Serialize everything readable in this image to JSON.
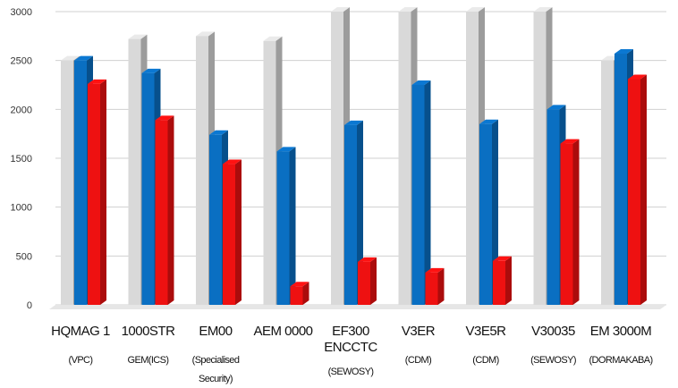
{
  "chart_data": {
    "type": "bar",
    "title": "",
    "xlabel": "",
    "ylabel": "",
    "ylim": [
      0,
      3000
    ],
    "yticks": [
      0,
      500,
      1000,
      1500,
      2000,
      2500,
      3000
    ],
    "grid": true,
    "legend": "none",
    "categories": [
      [
        "HQMAG 1",
        "(VPC)"
      ],
      [
        "1000STR",
        "GEM(ICS)"
      ],
      [
        "EM00",
        "(Specialised",
        "Security)"
      ],
      [
        "AEM 0000"
      ],
      [
        "EF300",
        "ENCCTC",
        "(SEWOSY)"
      ],
      [
        "V3ER",
        "(CDM)"
      ],
      [
        "V3E5R",
        "(CDM)"
      ],
      [
        "V30035",
        "(SEWOSY)"
      ],
      [
        "EM 3000M",
        "(DORMAKABA)"
      ]
    ],
    "series": [
      {
        "color": "#d9d9d9",
        "values": [
          2500,
          2720,
          2750,
          2700,
          3000,
          3000,
          3000,
          3000,
          2500
        ]
      },
      {
        "color": "#0a6fc2",
        "values": [
          2500,
          2370,
          1740,
          1570,
          1840,
          2250,
          1850,
          2000,
          2570
        ]
      },
      {
        "color": "#ee1111",
        "values": [
          2260,
          1890,
          1440,
          190,
          440,
          330,
          450,
          1650,
          2310
        ]
      }
    ]
  }
}
